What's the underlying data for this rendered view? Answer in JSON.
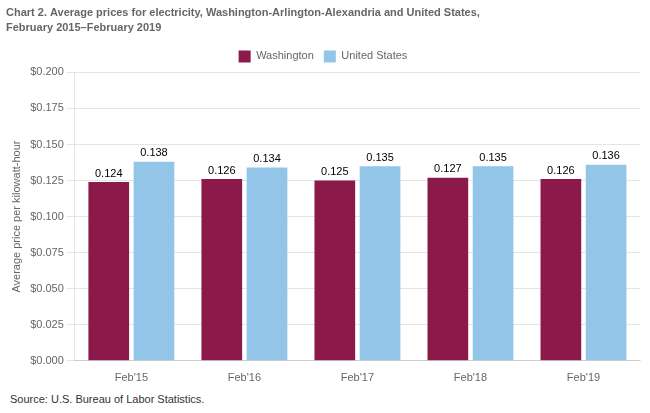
{
  "chart_data": {
    "type": "bar",
    "title": "Chart 2. Average prices for electricity, Washington-Arlington-Alexandria and United States,",
    "subtitle": "February 2015–February 2019",
    "ylabel": "Average price per kilowatt-hour",
    "source": "Source: U.S. Bureau of Labor Statistics.",
    "categories": [
      "Feb'15",
      "Feb'16",
      "Feb'17",
      "Feb'18",
      "Feb'19"
    ],
    "series": [
      {
        "name": "Washington",
        "color": "#8B1A4A",
        "values": [
          0.124,
          0.126,
          0.125,
          0.127,
          0.126
        ]
      },
      {
        "name": "United States",
        "color": "#92C5E8",
        "values": [
          0.138,
          0.134,
          0.135,
          0.135,
          0.136
        ]
      }
    ],
    "ylim": [
      0,
      0.2
    ],
    "yticks": [
      {
        "value": 0.0,
        "label": "$0.000"
      },
      {
        "value": 0.025,
        "label": "$0.025"
      },
      {
        "value": 0.05,
        "label": "$0.050"
      },
      {
        "value": 0.075,
        "label": "$0.075"
      },
      {
        "value": 0.1,
        "label": "$0.100"
      },
      {
        "value": 0.125,
        "label": "$0.125"
      },
      {
        "value": 0.15,
        "label": "$0.150"
      },
      {
        "value": 0.175,
        "label": "$0.175"
      },
      {
        "value": 0.2,
        "label": "$0.200"
      }
    ],
    "grid": true,
    "legend": "top",
    "data_labels": true
  }
}
